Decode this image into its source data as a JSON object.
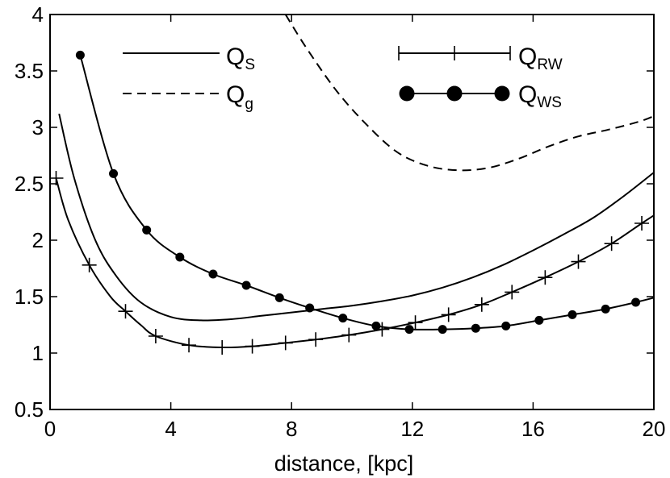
{
  "chart_data": {
    "type": "line",
    "title": "",
    "xlabel": "distance, [kpc]",
    "ylabel": "",
    "xlim": [
      0,
      20
    ],
    "ylim": [
      0.5,
      4
    ],
    "xticks": [
      0,
      4,
      8,
      12,
      16,
      20
    ],
    "xtick_labels": [
      "0",
      "4",
      "8",
      "12",
      "16",
      "20"
    ],
    "yticks": [
      0.5,
      1,
      1.5,
      2,
      2.5,
      3,
      3.5,
      4
    ],
    "ytick_labels": [
      "0.5",
      "1",
      "1.5",
      "2",
      "2.5",
      "3",
      "3.5",
      "4"
    ],
    "grid": false,
    "legend_position": "top",
    "series": [
      {
        "name": "Q_S",
        "label_main": "Q",
        "label_sub": "S",
        "style": "solid",
        "marker": "none",
        "x": [
          0.3,
          0.8,
          1.5,
          2.2,
          3.0,
          4.0,
          5.0,
          6.0,
          7.0,
          8.0,
          9.0,
          10.0,
          11.0,
          12.0,
          13.0,
          14.0,
          15.0,
          16.0,
          17.0,
          18.0,
          19.0,
          20.0
        ],
        "y": [
          3.12,
          2.55,
          2.0,
          1.68,
          1.45,
          1.32,
          1.29,
          1.3,
          1.33,
          1.36,
          1.39,
          1.42,
          1.46,
          1.51,
          1.58,
          1.67,
          1.78,
          1.91,
          2.05,
          2.2,
          2.39,
          2.6
        ]
      },
      {
        "name": "Q_g",
        "label_main": "Q",
        "label_sub": "g",
        "style": "dashed",
        "marker": "none",
        "x": [
          7.8,
          8.5,
          9.5,
          10.5,
          11.5,
          12.5,
          13.5,
          14.5,
          15.5,
          16.5,
          17.5,
          18.5,
          19.5,
          20.0
        ],
        "y": [
          4.0,
          3.7,
          3.32,
          3.02,
          2.78,
          2.66,
          2.62,
          2.64,
          2.72,
          2.83,
          2.92,
          2.98,
          3.05,
          3.1
        ]
      },
      {
        "name": "Q_RW",
        "label_main": "Q",
        "label_sub": "RW",
        "style": "solid",
        "marker": "plus",
        "x": [
          0.2,
          0.6,
          1.3,
          2.0,
          2.5,
          3.0,
          3.5,
          4.6,
          5.7,
          6.7,
          7.8,
          8.8,
          9.9,
          11.0,
          12.1,
          13.2,
          14.3,
          15.3,
          16.4,
          17.5,
          18.6,
          19.6,
          20.0
        ],
        "y": [
          2.55,
          2.18,
          1.78,
          1.5,
          1.37,
          1.25,
          1.15,
          1.07,
          1.05,
          1.06,
          1.09,
          1.12,
          1.16,
          1.21,
          1.27,
          1.34,
          1.43,
          1.54,
          1.67,
          1.81,
          1.97,
          2.15,
          2.22
        ],
        "markers_x": [
          0.2,
          1.3,
          2.5,
          3.5,
          4.6,
          5.7,
          6.7,
          7.8,
          8.8,
          9.9,
          11.0,
          12.1,
          13.2,
          14.3,
          15.3,
          16.4,
          17.5,
          18.6,
          19.6
        ],
        "markers_y": [
          2.55,
          1.78,
          1.37,
          1.15,
          1.07,
          1.05,
          1.06,
          1.09,
          1.12,
          1.16,
          1.21,
          1.27,
          1.34,
          1.43,
          1.54,
          1.67,
          1.81,
          1.97,
          2.15
        ]
      },
      {
        "name": "Q_WS",
        "label_main": "Q",
        "label_sub": "WS",
        "style": "solid",
        "marker": "circle",
        "x": [
          1.0,
          2.1,
          3.2,
          4.3,
          5.4,
          6.5,
          7.6,
          8.6,
          9.7,
          10.8,
          11.9,
          13.0,
          14.1,
          15.1,
          16.2,
          17.3,
          18.4,
          19.4,
          20.0
        ],
        "y": [
          3.64,
          2.59,
          2.09,
          1.85,
          1.7,
          1.6,
          1.49,
          1.4,
          1.31,
          1.24,
          1.21,
          1.21,
          1.22,
          1.24,
          1.29,
          1.34,
          1.39,
          1.45,
          1.49
        ],
        "markers_x": [
          1.0,
          2.1,
          3.2,
          4.3,
          5.4,
          6.5,
          7.6,
          8.6,
          9.7,
          10.8,
          11.9,
          13.0,
          14.1,
          15.1,
          16.2,
          17.3,
          18.4,
          19.4
        ],
        "markers_y": [
          3.64,
          2.59,
          2.09,
          1.85,
          1.7,
          1.6,
          1.49,
          1.4,
          1.31,
          1.24,
          1.21,
          1.21,
          1.22,
          1.24,
          1.29,
          1.34,
          1.39,
          1.45
        ]
      }
    ]
  }
}
